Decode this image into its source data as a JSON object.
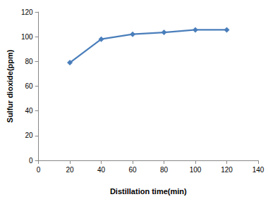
{
  "chart_data": {
    "type": "line",
    "x_label": "Distillation time(min)",
    "y_label": "Sulfur dioxide(ppm)",
    "x": [
      20,
      40,
      60,
      80,
      100,
      120
    ],
    "values": [
      79,
      98,
      102,
      103.5,
      105.5,
      105.5
    ],
    "color": "#4a7ebb",
    "marker": "diamond",
    "xlim": [
      0,
      140
    ],
    "xticks": [
      0,
      20,
      40,
      60,
      80,
      100,
      120,
      140
    ],
    "ylim": [
      0,
      120
    ],
    "yticks": [
      0,
      20,
      40,
      60,
      80,
      100,
      120
    ],
    "grid": false
  }
}
